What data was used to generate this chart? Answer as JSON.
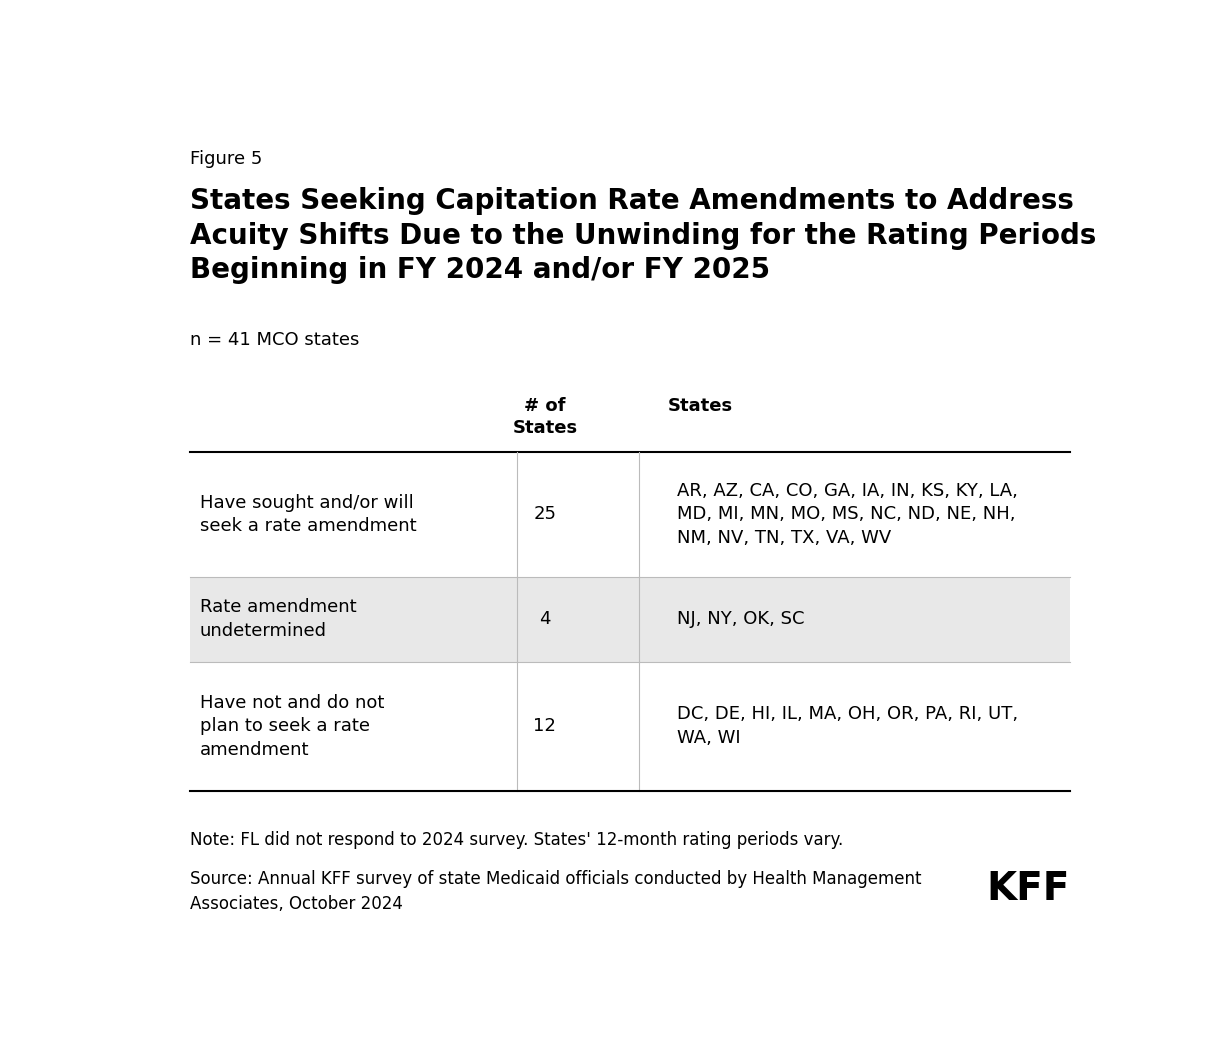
{
  "figure_label": "Figure 5",
  "title": "States Seeking Capitation Rate Amendments to Address\nAcuity Shifts Due to the Unwinding for the Rating Periods\nBeginning in FY 2024 and/or FY 2025",
  "subtitle": "n = 41 MCO states",
  "col_headers": [
    "# of\nStates",
    "States"
  ],
  "rows": [
    {
      "label": "Have sought and/or will\nseek a rate amendment",
      "count": "25",
      "states": "AR, AZ, CA, CO, GA, IA, IN, KS, KY, LA,\nMD, MI, MN, MO, MS, NC, ND, NE, NH,\nNM, NV, TN, TX, VA, WV",
      "shaded": false
    },
    {
      "label": "Rate amendment\nundetermined",
      "count": "4",
      "states": "NJ, NY, OK, SC",
      "shaded": true
    },
    {
      "label": "Have not and do not\nplan to seek a rate\namendment",
      "count": "12",
      "states": "DC, DE, HI, IL, MA, OH, OR, PA, RI, UT,\nWA, WI",
      "shaded": false
    }
  ],
  "note_line1": "Note: FL did not respond to 2024 survey. States' 12-month rating periods vary.",
  "note_line2": "Source: Annual KFF survey of state Medicaid officials conducted by Health Management\nAssociates, October 2024",
  "kff_logo": "KFF",
  "background_color": "#ffffff",
  "text_color": "#000000",
  "header_line_color": "#000000",
  "shaded_row_color": "#e8e8e8",
  "row_line_color": "#bbbbbb"
}
